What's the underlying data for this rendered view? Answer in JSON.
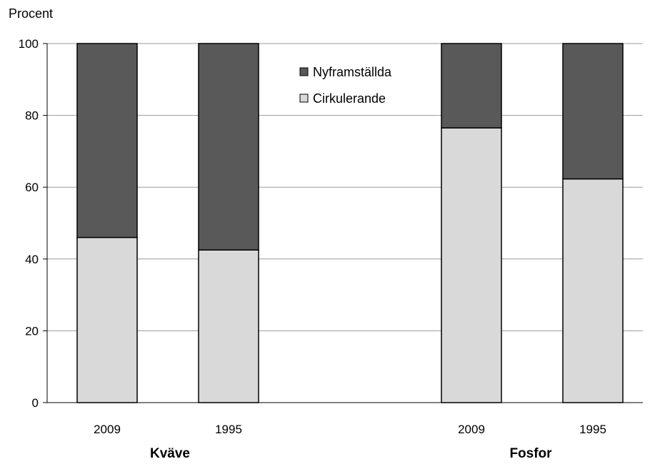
{
  "chart_data": {
    "type": "bar",
    "stacked": true,
    "ylabel": "Procent",
    "ylim": [
      0,
      100
    ],
    "yticks": [
      0,
      20,
      40,
      60,
      80,
      100
    ],
    "grid": true,
    "groups": [
      {
        "name": "Kväve",
        "categories": [
          "2009",
          "1995"
        ]
      },
      {
        "name": "Fosfor",
        "categories": [
          "2009",
          "1995"
        ]
      }
    ],
    "categories": [
      "2009",
      "1995",
      "2009",
      "1995"
    ],
    "series": [
      {
        "name": "Cirkulerande",
        "color": "#d9d9d9",
        "values": [
          46,
          42.5,
          76.5,
          62.3
        ]
      },
      {
        "name": "Nyframställda",
        "color": "#595959",
        "values": [
          54,
          57.5,
          23.5,
          37.7
        ]
      }
    ],
    "legend": {
      "placement": "top-center",
      "entries": [
        "Nyframställda",
        "Cirkulerande"
      ]
    }
  }
}
